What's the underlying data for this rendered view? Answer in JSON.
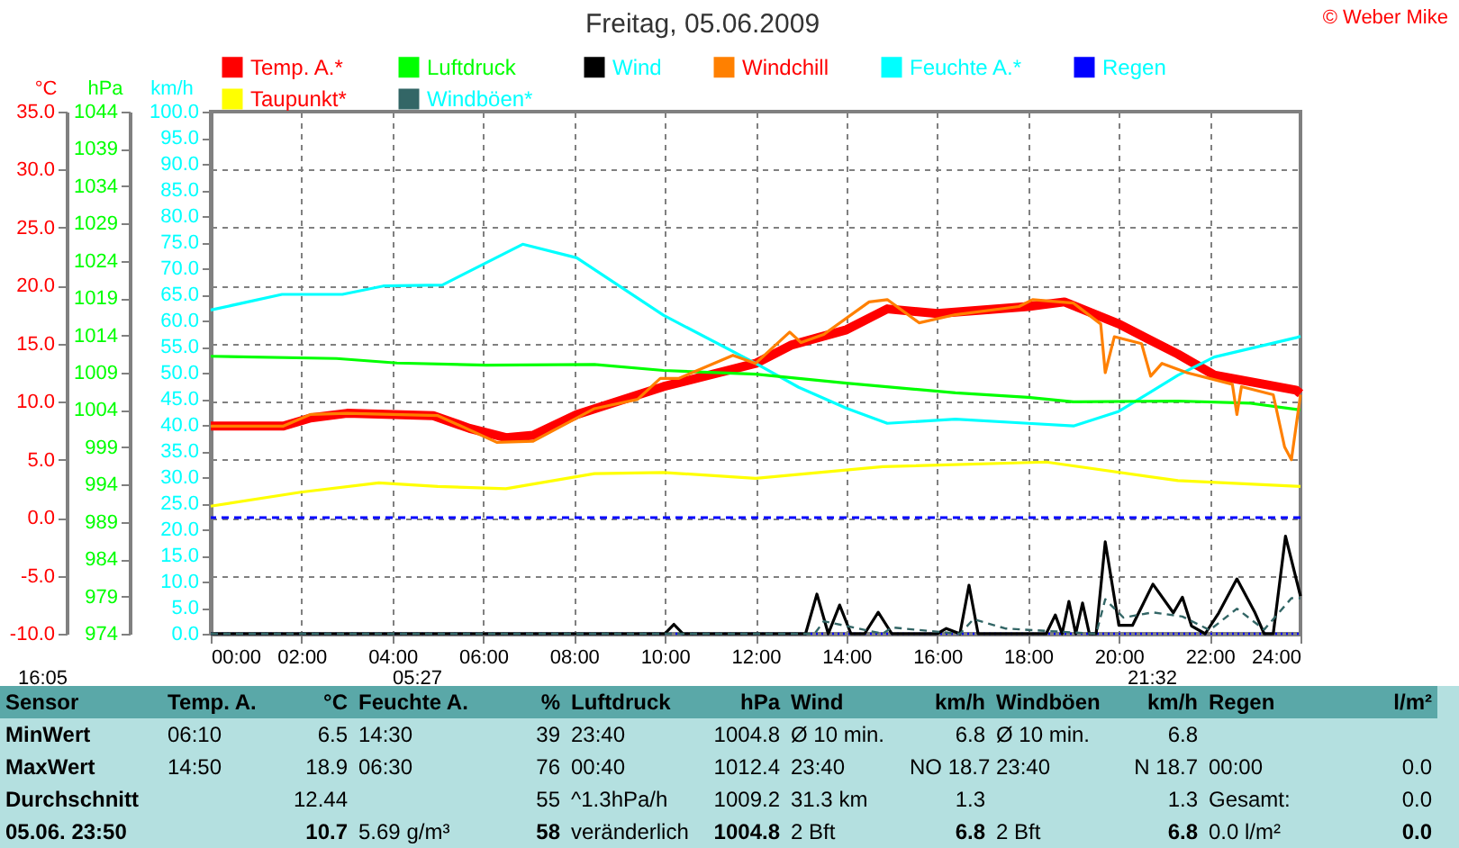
{
  "chart_data": {
    "type": "line",
    "title": "Freitag, 05.06.2009",
    "xlim": [
      0,
      24
    ],
    "xticks": [
      {
        "value": 0,
        "label": "00:00"
      },
      {
        "value": 2,
        "label": "02:00"
      },
      {
        "value": 4,
        "label": "04:00"
      },
      {
        "value": 6,
        "label": "06:00"
      },
      {
        "value": 8,
        "label": "08:00"
      },
      {
        "value": 10,
        "label": "10:00"
      },
      {
        "value": 12,
        "label": "12:00"
      },
      {
        "value": 14,
        "label": "14:00"
      },
      {
        "value": 16,
        "label": "16:00"
      },
      {
        "value": 18,
        "label": "18:00"
      },
      {
        "value": 20,
        "label": "20:00"
      },
      {
        "value": 22,
        "label": "22:00"
      },
      {
        "value": 24,
        "label": "24:00"
      }
    ],
    "ylabel": "°C",
    "ylim": [
      -10,
      35
    ],
    "yticks": [
      {
        "value": -10,
        "label": "-10.0"
      },
      {
        "value": -5,
        "label": "-5.0"
      },
      {
        "value": 0,
        "label": "0.0"
      },
      {
        "value": 5,
        "label": "5.0"
      },
      {
        "value": 10,
        "label": "10.0"
      },
      {
        "value": 15,
        "label": "15.0"
      },
      {
        "value": 20,
        "label": "20.0"
      },
      {
        "value": 25,
        "label": "25.0"
      },
      {
        "value": 30,
        "label": "30.0"
      },
      {
        "value": 35,
        "label": "35.0"
      }
    ],
    "y2label": "hPa",
    "y2lim": [
      974,
      1044
    ],
    "y2ticks": [
      974,
      979,
      984,
      989,
      994,
      999,
      1004,
      1009,
      1014,
      1019,
      1024,
      1029,
      1034,
      1039,
      1044
    ],
    "y3label": "km/h",
    "y3lim": [
      0,
      100
    ],
    "y3ticks": [
      {
        "value": 0,
        "label": "0.0"
      },
      {
        "value": 5,
        "label": "5.0"
      },
      {
        "value": 10,
        "label": "10.0"
      },
      {
        "value": 15,
        "label": "15.0"
      },
      {
        "value": 20,
        "label": "20.0"
      },
      {
        "value": 25,
        "label": "25.0"
      },
      {
        "value": 30,
        "label": "30.0"
      },
      {
        "value": 35,
        "label": "35.0"
      },
      {
        "value": 40,
        "label": "40.0"
      },
      {
        "value": 45,
        "label": "45.0"
      },
      {
        "value": 50,
        "label": "50.0"
      },
      {
        "value": 55,
        "label": "55.0"
      },
      {
        "value": 60,
        "label": "60.0"
      },
      {
        "value": 65,
        "label": "65.0"
      },
      {
        "value": 70,
        "label": "70.0"
      },
      {
        "value": 75,
        "label": "75.0"
      },
      {
        "value": 80,
        "label": "80.0"
      },
      {
        "value": 85,
        "label": "85.0"
      },
      {
        "value": 90,
        "label": "90.0"
      },
      {
        "value": 95,
        "label": "95.0"
      },
      {
        "value": 100,
        "label": "100.0"
      }
    ],
    "grid": true,
    "legend": "top",
    "marker": "none",
    "ref_lines": [
      {
        "axis": "y",
        "value": 0,
        "color": "#0000ff",
        "line_style": "dashed"
      }
    ],
    "series": [
      {
        "name": "Temp. A.*",
        "color": "#ff0000",
        "axis": "y",
        "x": [
          0,
          1.6,
          2.2,
          3,
          4.9,
          5.7,
          6.5,
          7.1,
          8.06,
          9.97,
          12.0,
          12.8,
          14.0,
          14.9,
          16.0,
          18.0,
          18.8,
          20.0,
          21.3,
          22.1,
          23.9,
          24
        ],
        "values": [
          7.9,
          7.9,
          8.6,
          9.0,
          8.8,
          7.7,
          6.9,
          7.1,
          8.9,
          11.3,
          13.3,
          14.9,
          16.2,
          18.0,
          17.6,
          18.2,
          18.6,
          16.7,
          14.1,
          12.3,
          11.0,
          10.7
        ]
      },
      {
        "name": "Feuchte A.*",
        "color": "#00ffff",
        "axis": "y3",
        "x": [
          0,
          1.57,
          2.9,
          3.8,
          5.1,
          6.87,
          8.06,
          9.97,
          12.0,
          12.95,
          14.0,
          14.9,
          16.4,
          18.0,
          19.0,
          20.0,
          21.3,
          22.1,
          23.9,
          24
        ],
        "values": [
          62,
          65,
          65,
          66.6,
          66.8,
          74.6,
          72,
          61,
          51.8,
          47.2,
          43.2,
          40.3,
          41.1,
          40.3,
          39.8,
          42.6,
          49.5,
          53,
          56.7,
          57
        ]
      },
      {
        "name": "Luftdruck",
        "color": "#00ff00",
        "axis": "y2",
        "x": [
          0,
          2.77,
          4.1,
          6.07,
          8.45,
          9.97,
          12,
          14,
          16.4,
          18,
          19,
          21.3,
          22.9,
          24
        ],
        "values": [
          1011.2,
          1010.9,
          1010.3,
          1010.0,
          1010.1,
          1009.3,
          1008.8,
          1007.6,
          1006.3,
          1005.7,
          1005.1,
          1005.2,
          1004.9,
          1004.0
        ]
      },
      {
        "name": "Regen",
        "color": "#0000ff",
        "axis": "y3",
        "line_style": "dotted",
        "x": [
          0,
          24
        ],
        "values": [
          0,
          0
        ]
      },
      {
        "name": "Wind",
        "color": "#000000",
        "axis": "y3",
        "x": [
          0,
          10.0,
          10.2,
          10.4,
          13.1,
          13.35,
          13.6,
          13.85,
          14.1,
          14.4,
          14.7,
          15.0,
          16.0,
          16.2,
          16.5,
          16.7,
          16.9,
          18.4,
          18.6,
          18.75,
          18.9,
          19.05,
          19.2,
          19.35,
          19.5,
          19.7,
          20.0,
          20.3,
          20.75,
          21.2,
          21.4,
          21.6,
          21.9,
          22.2,
          22.6,
          23.0,
          23.2,
          23.4,
          23.67,
          24
        ],
        "values": [
          0,
          0,
          1.8,
          0,
          0,
          7.6,
          0,
          5.5,
          0,
          0,
          4.1,
          0,
          0,
          1.0,
          0,
          9.3,
          0,
          0,
          3.6,
          0,
          6.2,
          0,
          5.9,
          0,
          0,
          17.6,
          1.6,
          1.6,
          9.5,
          4,
          7.0,
          1.5,
          0,
          4,
          10.5,
          4,
          0,
          0,
          18.7,
          7.2
        ]
      },
      {
        "name": "Taupunkt*",
        "color": "#ffff00",
        "axis": "y",
        "x": [
          0,
          1.98,
          3.7,
          5.0,
          6.5,
          8.45,
          9.97,
          12,
          14.8,
          18.4,
          21.3,
          24
        ],
        "values": [
          1.0,
          2.2,
          3.0,
          2.7,
          2.5,
          3.8,
          3.9,
          3.4,
          4.4,
          4.8,
          3.2,
          2.7
        ]
      },
      {
        "name": "Windchill",
        "color": "#ff8000",
        "axis": "y",
        "x": [
          0,
          1.6,
          2.2,
          3,
          5,
          6.3,
          7.1,
          8.45,
          9.4,
          9.9,
          10.3,
          11.5,
          12.0,
          12.75,
          13.0,
          13.5,
          14.5,
          14.9,
          15.6,
          16.4,
          17.8,
          18.1,
          19.0,
          19.6,
          19.7,
          19.9,
          20.5,
          20.7,
          20.95,
          21.5,
          22.5,
          22.6,
          22.7,
          23.4,
          23.65,
          23.8,
          24
        ],
        "values": [
          7.9,
          7.9,
          8.9,
          9.0,
          8.8,
          6.5,
          6.6,
          9.4,
          10.2,
          12.0,
          12.0,
          14.0,
          13.3,
          16.0,
          15.1,
          15.8,
          18.6,
          18.8,
          16.8,
          17.5,
          18.2,
          18.8,
          18.5,
          16.7,
          12.5,
          15.6,
          15.0,
          12.2,
          13.3,
          12.5,
          11.5,
          8.9,
          11.3,
          10.6,
          6.1,
          5.0,
          10.6
        ]
      },
      {
        "name": "Windböen*",
        "color": "#336666",
        "axis": "y3",
        "line_style": "dashed",
        "x": [
          0,
          13.3,
          13.5,
          14.8,
          15.0,
          16.5,
          16.8,
          17.5,
          19.5,
          19.7,
          20.1,
          20.75,
          21.4,
          22.0,
          22.6,
          23.2,
          23.8,
          24
        ],
        "values": [
          0,
          0,
          2.4,
          0,
          1.2,
          0,
          2.8,
          1.0,
          0,
          6.6,
          3.1,
          4.1,
          3.3,
          0.7,
          4.8,
          0.8,
          6.8,
          6.8
        ]
      }
    ],
    "annotations": [
      "© Weber Mike",
      "16:05",
      "05:27",
      "21:32",
      "Sensor",
      "Temp. A.",
      "°C",
      "Feuchte A.",
      "%",
      "Luftdruck",
      "hPa",
      "Wind",
      "km/h",
      "Windböen",
      "km/h",
      "Regen",
      "l/m²",
      "MinWert",
      "06:10",
      "6.5",
      "14:30",
      "39",
      "23:40",
      "1004.8",
      "Ø 10 min.",
      "6.8",
      "Ø 10 min.",
      "6.8",
      null,
      null,
      "MaxWert",
      "14:50",
      "18.9",
      "06:30",
      "76",
      "00:40",
      "1012.4",
      "23:40",
      "NO 18.7",
      "23:40",
      "N 18.7",
      "00:00",
      "0.0",
      "Durchschnitt",
      null,
      "12.44",
      null,
      "55",
      "^1.3hPa/h",
      "1009.2",
      "31.3 km",
      "1.3",
      null,
      "1.3",
      "Gesamt:",
      "0.0",
      "05.06. 23:50",
      null,
      "10.7",
      "5.69 g/m³",
      "58",
      "veränderlich",
      "1004.8",
      "2 Bft",
      "6.8",
      "2 Bft",
      "6.8",
      "0.0 l/m²",
      "0.0"
    ]
  }
}
